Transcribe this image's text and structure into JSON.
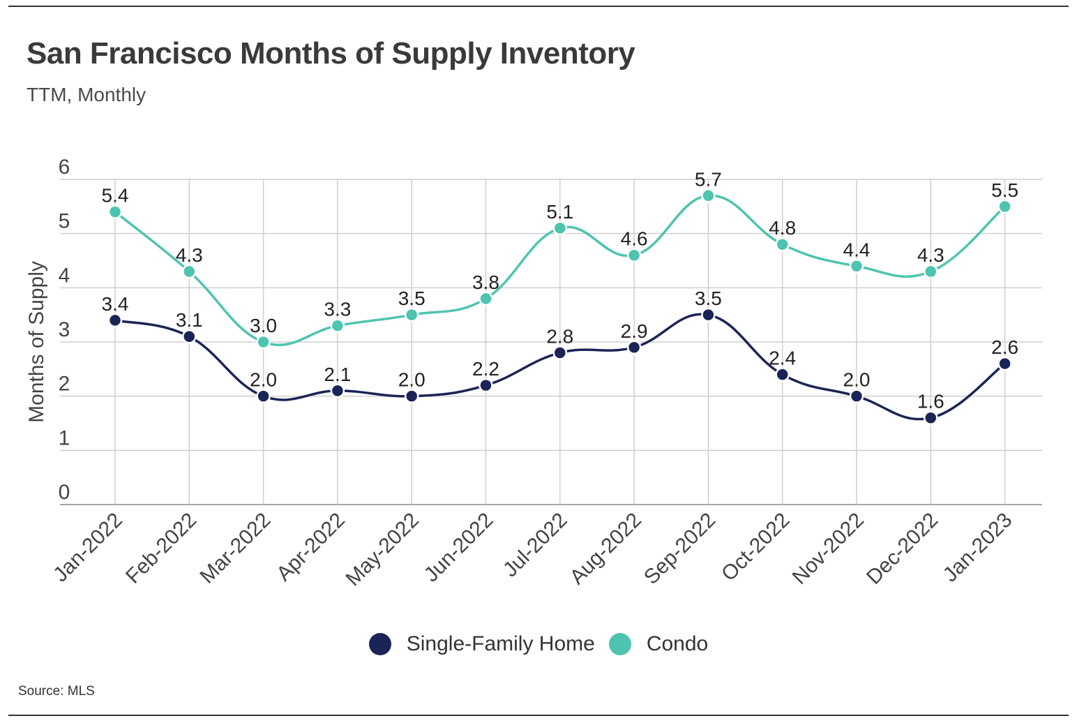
{
  "header": {
    "title": "San Francisco Months of Supply Inventory",
    "subtitle": "TTM, Monthly"
  },
  "footer": {
    "source": "Source:  MLS"
  },
  "colors": {
    "single_family": "#1b2456",
    "condo": "#4ec4b0",
    "grid": "#cfcfcf",
    "axis": "#888888"
  },
  "chart_data": {
    "type": "line",
    "title": "San Francisco Months of Supply Inventory",
    "subtitle": "TTM, Monthly",
    "xlabel": "",
    "ylabel": "Months of Supply",
    "ylim": [
      0,
      6
    ],
    "yticks": [
      "0",
      "1",
      "2",
      "3",
      "4",
      "5",
      "6"
    ],
    "grid": true,
    "legend_position": "bottom-center",
    "categories": [
      "Jan-2022",
      "Feb-2022",
      "Mar-2022",
      "Apr-2022",
      "May-2022",
      "Jun-2022",
      "Jul-2022",
      "Aug-2022",
      "Sep-2022",
      "Oct-2022",
      "Nov-2022",
      "Dec-2022",
      "Jan-2023"
    ],
    "series": [
      {
        "name": "Single-Family Home",
        "color": "#1b2456",
        "values": [
          3.4,
          3.1,
          2.0,
          2.1,
          2.0,
          2.2,
          2.8,
          2.9,
          3.5,
          2.4,
          2.0,
          1.6,
          2.6
        ],
        "labels": [
          "3.4",
          "3.1",
          "2.0",
          "2.1",
          "2.0",
          "2.2",
          "2.8",
          "2.9",
          "3.5",
          "2.4",
          "2.0",
          "1.6",
          "2.6"
        ]
      },
      {
        "name": "Condo",
        "color": "#4ec4b0",
        "values": [
          5.4,
          4.3,
          3.0,
          3.3,
          3.5,
          3.8,
          5.1,
          4.6,
          5.7,
          4.8,
          4.4,
          4.3,
          5.5
        ],
        "labels": [
          "5.4",
          "4.3",
          "3.0",
          "3.3",
          "3.5",
          "3.8",
          "5.1",
          "4.6",
          "5.7",
          "4.8",
          "4.4",
          "4.3",
          "5.5"
        ]
      }
    ]
  }
}
